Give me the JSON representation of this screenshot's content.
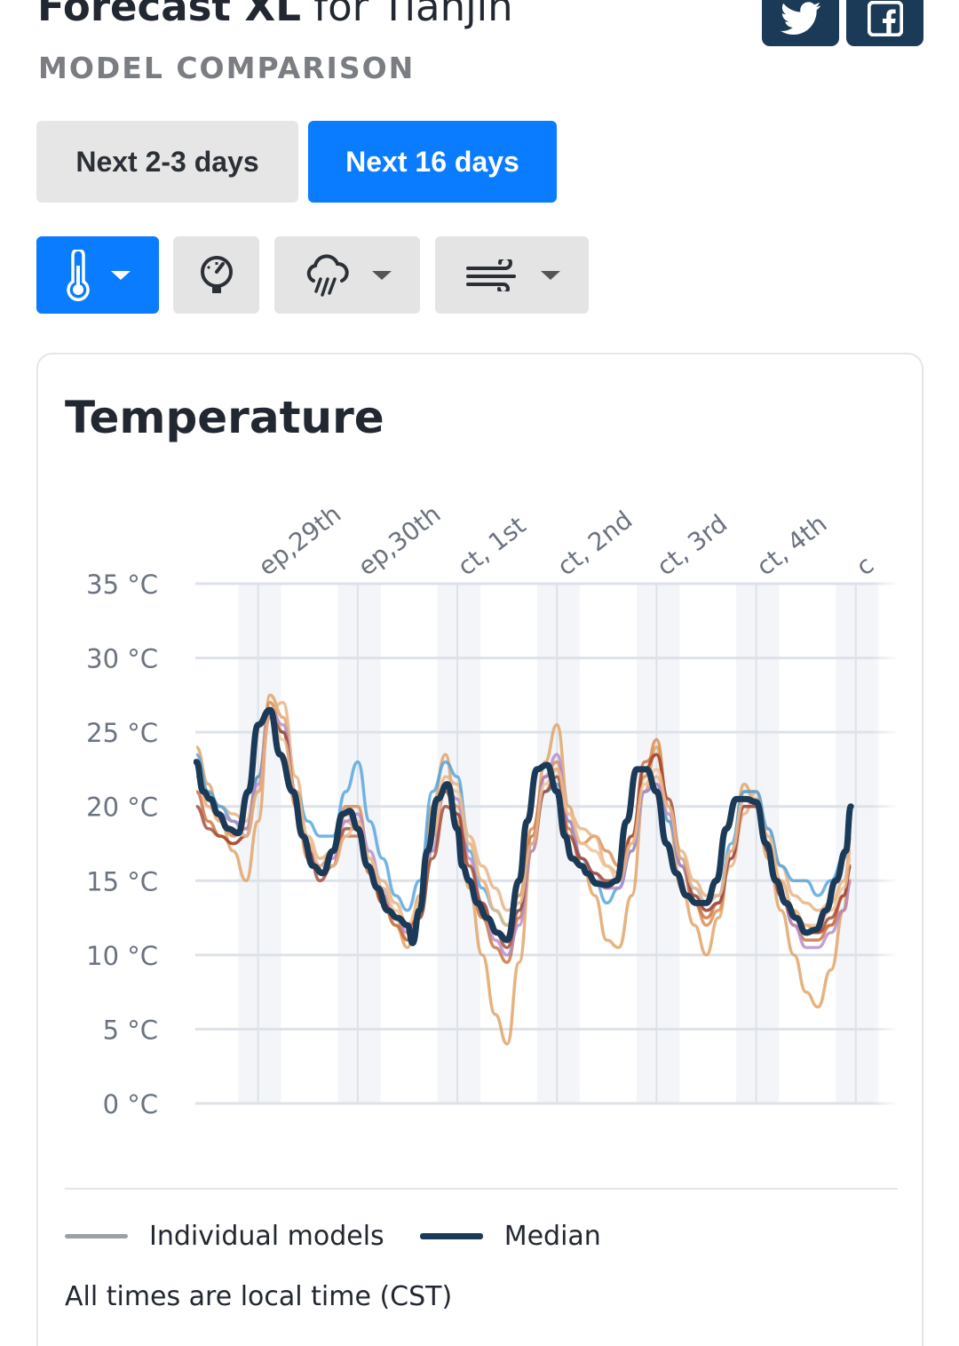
{
  "header": {
    "title_bold": "Forecast XL",
    "title_rest": " for Tianjin",
    "subtitle": "MODEL COMPARISON"
  },
  "social": {
    "twitter_icon": "twitter-icon",
    "facebook_icon": "facebook-icon"
  },
  "range_tabs": [
    {
      "label": "Next 2-3 days",
      "active": false
    },
    {
      "label": "Next 16 days",
      "active": true
    }
  ],
  "tools": [
    {
      "icon": "thermometer-icon",
      "active": true,
      "has_dropdown": true
    },
    {
      "icon": "pressure-gauge-icon",
      "active": false,
      "has_dropdown": false
    },
    {
      "icon": "rain-cloud-icon",
      "active": false,
      "has_dropdown": true
    },
    {
      "icon": "wind-icon",
      "active": false,
      "has_dropdown": true
    }
  ],
  "card": {
    "title": "Temperature",
    "legend": {
      "models": "Individual models",
      "median": "Median"
    },
    "timezone_note": "All times are local time (CST)"
  },
  "chart_data": {
    "type": "line",
    "title": "Temperature",
    "y_tick_labels": [
      "35 °C",
      "30 °C",
      "25 °C",
      "20 °C",
      "15 °C",
      "10 °C",
      "5 °C",
      "0 °C"
    ],
    "y_ticks": [
      35,
      30,
      25,
      20,
      15,
      10,
      5,
      0
    ],
    "ylim": [
      0,
      35
    ],
    "x_tick_labels": [
      "ep,29th",
      "ep,30th",
      "ct, 1st",
      "ct, 2nd",
      "ct, 3rd",
      "ct, 4th",
      "c"
    ],
    "x_tick_days": [
      1,
      2,
      3,
      4,
      5,
      6,
      7
    ],
    "xlim_days": [
      0.37,
      7.43
    ],
    "grid": true,
    "colors": {
      "median": "#1b3a57",
      "models": [
        "#e0a060",
        "#d98a4a",
        "#e6b080",
        "#c86d3a",
        "#4fa3dd",
        "#b48ac8",
        "#a3452e",
        "#f0c090"
      ]
    },
    "median": {
      "name": "Median",
      "x": [
        0.38,
        0.45,
        0.52,
        0.6,
        0.7,
        0.8,
        0.9,
        1.0,
        1.12,
        1.22,
        1.35,
        1.45,
        1.55,
        1.65,
        1.75,
        1.85,
        1.92,
        2.0,
        2.1,
        2.2,
        2.3,
        2.4,
        2.5,
        2.55,
        2.62,
        2.7,
        2.8,
        2.9,
        3.0,
        3.05,
        3.12,
        3.2,
        3.3,
        3.4,
        3.5,
        3.62,
        3.7,
        3.8,
        3.9,
        4.0,
        4.08,
        4.15,
        4.25,
        4.3,
        4.4,
        4.5,
        4.6,
        4.7,
        4.8,
        4.9,
        5.0,
        5.1,
        5.2,
        5.3,
        5.4,
        5.5,
        5.6,
        5.7,
        5.8,
        5.9,
        6.0,
        6.1,
        6.2,
        6.3,
        6.4,
        6.5,
        6.6,
        6.7,
        6.8,
        6.9,
        6.95
      ],
      "y": [
        23,
        21,
        20.5,
        19.5,
        18.5,
        18.2,
        21,
        25.5,
        26.5,
        23.5,
        21,
        18,
        16,
        15.5,
        17,
        19.5,
        19.7,
        18.5,
        16,
        14.5,
        13,
        12.5,
        12,
        10.8,
        13,
        17,
        20.5,
        21.5,
        18.5,
        16,
        15,
        13.5,
        12.5,
        11.5,
        11,
        15,
        19,
        22.5,
        22.8,
        21,
        18,
        16.5,
        16,
        15.5,
        14.8,
        14.7,
        15,
        19,
        22.5,
        22.5,
        21,
        17.5,
        15.5,
        14,
        13.5,
        13.5,
        15,
        18.5,
        20.5,
        20.5,
        20.3,
        17.5,
        15,
        13.5,
        12.5,
        11.5,
        11.7,
        13,
        15,
        17,
        20
      ]
    },
    "models": [
      {
        "x": [
          0.38,
          0.5,
          0.62,
          0.75,
          0.88,
          1.0,
          1.12,
          1.25,
          1.38,
          1.5,
          1.62,
          1.75,
          1.88,
          2.0,
          2.12,
          2.25,
          2.38,
          2.5,
          2.62,
          2.75,
          2.88,
          3.0,
          3.12,
          3.25,
          3.38,
          3.5,
          3.62,
          3.75,
          3.88,
          4.0,
          4.12,
          4.25,
          4.38,
          4.5,
          4.62,
          4.75,
          4.88,
          5.0,
          5.12,
          5.25,
          5.38,
          5.5,
          5.62,
          5.75,
          5.88,
          6.0,
          6.12,
          6.25,
          6.38,
          6.5,
          6.62,
          6.75,
          6.88,
          6.95
        ],
        "y": [
          24,
          21.5,
          19,
          17,
          15,
          19,
          27.5,
          26,
          21,
          17.5,
          15.5,
          16,
          19.5,
          19,
          16,
          13.5,
          12,
          10.5,
          14,
          20,
          23.5,
          19,
          14.5,
          10,
          6,
          4,
          9.5,
          17,
          23,
          25.5,
          20,
          16,
          14,
          11,
          10.5,
          14,
          21,
          24,
          19,
          14.5,
          12,
          10,
          12.5,
          17,
          21.5,
          20,
          16.5,
          13,
          10,
          7.5,
          6.5,
          9,
          13,
          18
        ]
      },
      {
        "x": [
          0.38,
          0.5,
          0.62,
          0.75,
          0.88,
          1.0,
          1.12,
          1.25,
          1.38,
          1.5,
          1.62,
          1.75,
          1.88,
          2.0,
          2.12,
          2.25,
          2.38,
          2.5,
          2.62,
          2.75,
          2.88,
          3.0,
          3.12,
          3.25,
          3.38,
          3.5,
          3.62,
          3.75,
          3.88,
          4.0,
          4.12,
          4.25,
          4.38,
          4.5,
          4.62,
          4.75,
          4.88,
          5.0,
          5.12,
          5.25,
          5.38,
          5.5,
          5.62,
          5.75,
          5.88,
          6.0,
          6.12,
          6.25,
          6.38,
          6.5,
          6.62,
          6.75,
          6.88,
          6.95
        ],
        "y": [
          22.5,
          20,
          19,
          18,
          18.5,
          22,
          27,
          25,
          20,
          16.5,
          16,
          17,
          20,
          20,
          16.5,
          14,
          12.5,
          11,
          13,
          18.5,
          21,
          20,
          17.5,
          15,
          13,
          12,
          14,
          18.5,
          22,
          23,
          19,
          17.5,
          18,
          17,
          16,
          18,
          22,
          24.5,
          20,
          16,
          13.5,
          12,
          13,
          17,
          21,
          21,
          18,
          15,
          13,
          12,
          11.5,
          12,
          13,
          15
        ]
      },
      {
        "x": [
          0.38,
          0.5,
          0.62,
          0.75,
          0.88,
          1.0,
          1.12,
          1.25,
          1.38,
          1.5,
          1.62,
          1.75,
          1.88,
          2.0,
          2.12,
          2.25,
          2.38,
          2.5,
          2.62,
          2.75,
          2.88,
          3.0,
          3.12,
          3.25,
          3.38,
          3.5,
          3.62,
          3.75,
          3.88,
          4.0,
          4.12,
          4.25,
          4.38,
          4.5,
          4.62,
          4.75,
          4.88,
          5.0,
          5.12,
          5.25,
          5.38,
          5.5,
          5.62,
          5.75,
          5.88,
          6.0,
          6.12,
          6.25,
          6.38,
          6.5,
          6.62,
          6.75,
          6.88,
          6.95
        ],
        "y": [
          23,
          21,
          20,
          19.5,
          19,
          22,
          26.5,
          27,
          22,
          18,
          16.5,
          17,
          19,
          18.5,
          16,
          15,
          13.5,
          12,
          12.5,
          17,
          22,
          21.5,
          18,
          16,
          14.5,
          13,
          13.5,
          17,
          21,
          22.5,
          19.5,
          18.5,
          18,
          16,
          15.5,
          17,
          21,
          22,
          20,
          17,
          15,
          14,
          14,
          16,
          19.5,
          21,
          18.5,
          16,
          14,
          13.5,
          13,
          13.5,
          15,
          17
        ]
      },
      {
        "x": [
          0.38,
          0.5,
          0.62,
          0.75,
          0.88,
          1.0,
          1.12,
          1.25,
          1.38,
          1.5,
          1.62,
          1.75,
          1.88,
          2.0,
          2.12,
          2.25,
          2.38,
          2.5,
          2.62,
          2.75,
          2.88,
          3.0,
          3.12,
          3.25,
          3.38,
          3.5,
          3.62,
          3.75,
          3.88,
          4.0,
          4.12,
          4.25,
          4.38,
          4.5,
          4.62,
          4.75,
          4.88,
          5.0,
          5.12,
          5.25,
          5.38,
          5.5,
          5.62,
          5.75,
          5.88,
          6.0,
          6.12,
          6.25,
          6.38,
          6.5,
          6.62,
          6.75,
          6.88,
          6.95
        ],
        "y": [
          21,
          19,
          18,
          17.5,
          18,
          22,
          26,
          25,
          21,
          17,
          15.5,
          16,
          18,
          18,
          15.5,
          13.5,
          12,
          11,
          13,
          18,
          21,
          19.5,
          15,
          12.5,
          10.5,
          9.5,
          12.5,
          18,
          22,
          22.5,
          18.5,
          16,
          15,
          14.5,
          15,
          17.5,
          23,
          23.5,
          20,
          16,
          13.5,
          12.5,
          13.5,
          17,
          20.5,
          20.5,
          17,
          14,
          12,
          11,
          11,
          12,
          14,
          16
        ]
      },
      {
        "x": [
          0.38,
          0.5,
          0.62,
          0.75,
          0.88,
          1.0,
          1.12,
          1.25,
          1.38,
          1.5,
          1.62,
          1.75,
          1.88,
          2.0,
          2.12,
          2.25,
          2.38,
          2.5,
          2.62,
          2.75,
          2.88,
          3.0,
          3.12,
          3.25,
          3.38,
          3.5,
          3.62,
          3.75,
          3.88,
          4.0,
          4.12,
          4.25,
          4.38,
          4.5,
          4.62,
          4.75,
          4.88,
          5.0,
          5.12,
          5.25,
          5.38,
          5.5,
          5.62,
          5.75,
          5.88,
          6.0,
          6.12,
          6.25,
          6.38,
          6.5,
          6.62,
          6.75,
          6.88,
          6.95
        ],
        "y": [
          23.5,
          21,
          20,
          19,
          18,
          22,
          26,
          25,
          21,
          19,
          18,
          18,
          21,
          23,
          19,
          16.5,
          14,
          13,
          15,
          21,
          23,
          22,
          17,
          14.5,
          13,
          12,
          13,
          17.5,
          21,
          21.5,
          19,
          16.5,
          15,
          13.5,
          14.5,
          17,
          21,
          21.5,
          19,
          16,
          14.5,
          13.5,
          14,
          17.5,
          21,
          21,
          18.5,
          16,
          15,
          15,
          14,
          15,
          16.5,
          19
        ]
      },
      {
        "x": [
          0.38,
          0.5,
          0.62,
          0.75,
          0.88,
          1.0,
          1.12,
          1.25,
          1.38,
          1.5,
          1.62,
          1.75,
          1.88,
          2.0,
          2.12,
          2.25,
          2.38,
          2.5,
          2.62,
          2.75,
          2.88,
          3.0,
          3.12,
          3.25,
          3.38,
          3.5,
          3.62,
          3.75,
          3.88,
          4.0,
          4.12,
          4.25,
          4.38,
          4.5,
          4.62,
          4.75,
          4.88,
          5.0,
          5.12,
          5.25,
          5.38,
          5.5,
          5.62,
          5.75,
          5.88,
          6.0,
          6.12,
          6.25,
          6.38,
          6.5,
          6.62,
          6.75,
          6.88,
          6.95
        ],
        "y": [
          22,
          20.5,
          19.5,
          19,
          18.5,
          21.5,
          26.5,
          25.5,
          21,
          17,
          16,
          16.5,
          19,
          19.5,
          17,
          14.5,
          12.5,
          11.5,
          12.5,
          17,
          21.5,
          20.5,
          16.5,
          13.5,
          11,
          10,
          12,
          17,
          22,
          23.5,
          19,
          16.5,
          15.5,
          14.5,
          14.5,
          17,
          21,
          21.5,
          19.5,
          16,
          14,
          13,
          13.5,
          16.5,
          20,
          20,
          17,
          14,
          12,
          10.5,
          10.5,
          11.5,
          13,
          15
        ]
      },
      {
        "x": [
          0.38,
          0.5,
          0.62,
          0.75,
          0.88,
          1.0,
          1.12,
          1.25,
          1.38,
          1.5,
          1.62,
          1.75,
          1.88,
          2.0,
          2.12,
          2.25,
          2.38,
          2.5,
          2.62,
          2.75,
          2.88,
          3.0,
          3.12,
          3.25,
          3.38,
          3.5,
          3.62,
          3.75,
          3.88,
          4.0,
          4.12,
          4.25,
          4.38,
          4.5,
          4.62,
          4.75,
          4.88,
          5.0,
          5.12,
          5.25,
          5.38,
          5.5,
          5.62,
          5.75,
          5.88,
          6.0,
          6.12,
          6.25,
          6.38,
          6.5,
          6.62,
          6.75,
          6.88,
          6.95
        ],
        "y": [
          20,
          18.5,
          18,
          17.5,
          18,
          21,
          26,
          25,
          21,
          17,
          15,
          16,
          18.5,
          18.5,
          16,
          13.5,
          12.5,
          12,
          12.5,
          16.5,
          20,
          19.5,
          16,
          13.5,
          11.5,
          10.5,
          13,
          17.5,
          21,
          22,
          18,
          16.5,
          15.5,
          15,
          15,
          18,
          22.5,
          23.5,
          20.5,
          16.5,
          14,
          13,
          13.5,
          16.5,
          20,
          20,
          17,
          14,
          12.5,
          11.5,
          11.5,
          12.5,
          14,
          16
        ]
      },
      {
        "x": [
          0.38,
          0.5,
          0.62,
          0.75,
          0.88,
          1.0,
          1.12,
          1.25,
          1.38,
          1.5,
          1.62,
          1.75,
          1.88,
          2.0,
          2.12,
          2.25,
          2.38,
          2.5,
          2.62,
          2.75,
          2.88,
          3.0,
          3.12,
          3.25,
          3.38,
          3.5,
          3.62,
          3.75,
          3.88,
          4.0,
          4.12,
          4.25,
          4.38,
          4.5,
          4.62,
          4.75,
          4.88,
          5.0,
          5.12,
          5.25,
          5.38,
          5.5,
          5.62,
          5.75,
          5.88,
          6.0,
          6.12,
          6.25,
          6.38,
          6.5,
          6.62,
          6.75,
          6.88,
          6.95
        ],
        "y": [
          22,
          20,
          19,
          18.5,
          18,
          21,
          26,
          24.5,
          21,
          18,
          16,
          16,
          18,
          19,
          16.5,
          14.5,
          13,
          12,
          13.5,
          18,
          21.5,
          21,
          17.5,
          15,
          13,
          12,
          13.5,
          17.5,
          21.5,
          22.5,
          19.5,
          17.5,
          17,
          16,
          15,
          17.5,
          21.5,
          22.5,
          20,
          16.5,
          14.5,
          13.5,
          14,
          17,
          20.5,
          20.5,
          18,
          15,
          13,
          12,
          12,
          13,
          14.5,
          16.5
        ]
      }
    ]
  }
}
